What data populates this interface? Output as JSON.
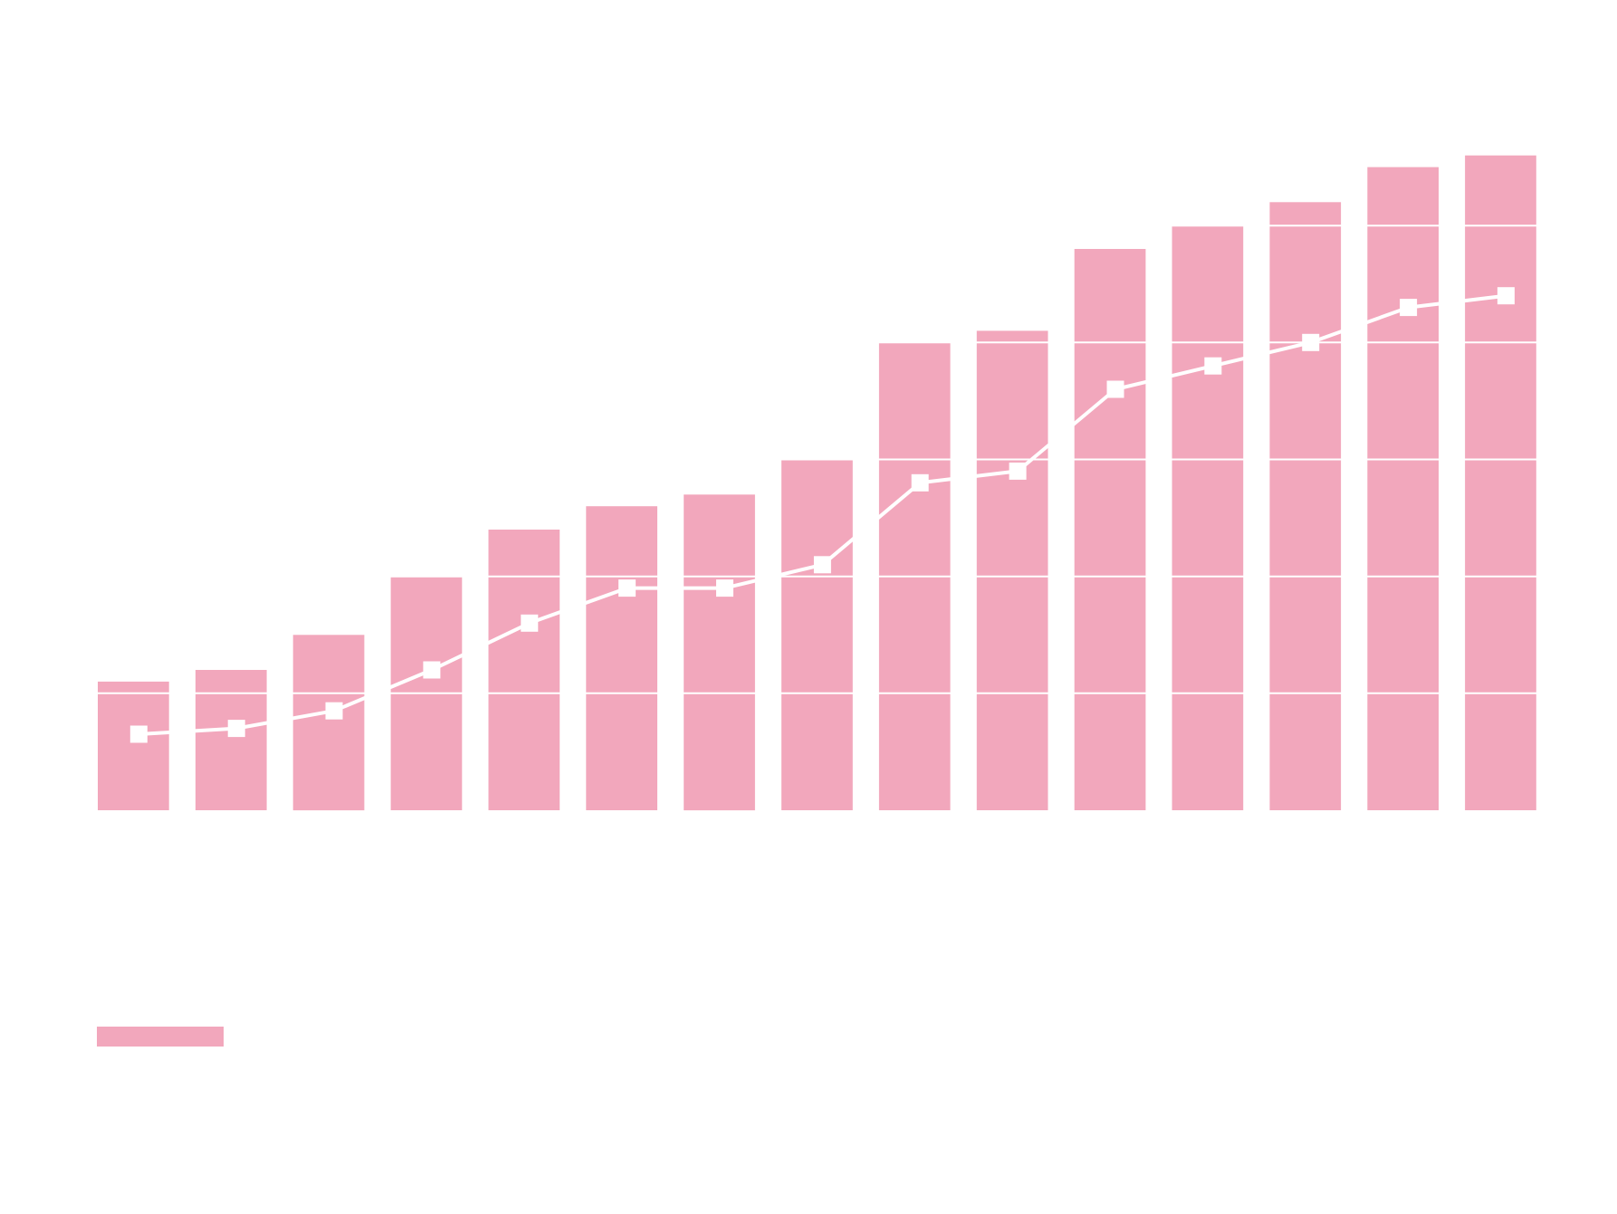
{
  "chart_data": {
    "type": "bar",
    "categories": [
      "",
      "",
      "",
      "",
      "",
      "",
      "",
      "",
      "",
      "",
      "",
      "",
      "",
      "",
      ""
    ],
    "series": [
      {
        "type": "bar",
        "color": "#f2a7bc",
        "values": [
          1.1,
          1.2,
          1.5,
          2.0,
          2.4,
          2.6,
          2.7,
          3.0,
          4.0,
          4.1,
          4.8,
          5.0,
          5.2,
          5.5,
          5.6
        ]
      },
      {
        "type": "line",
        "color": "#ffffff",
        "marker": "square",
        "values": [
          0.65,
          0.7,
          0.85,
          1.2,
          1.6,
          1.9,
          1.9,
          2.1,
          2.8,
          2.9,
          3.6,
          3.8,
          4.0,
          4.3,
          4.4
        ]
      }
    ],
    "ylim": [
      0,
      6
    ],
    "grid": true,
    "gridline_color": "#ffffff",
    "legend": "bottom-left",
    "title": "",
    "xlabel": "",
    "ylabel": ""
  }
}
